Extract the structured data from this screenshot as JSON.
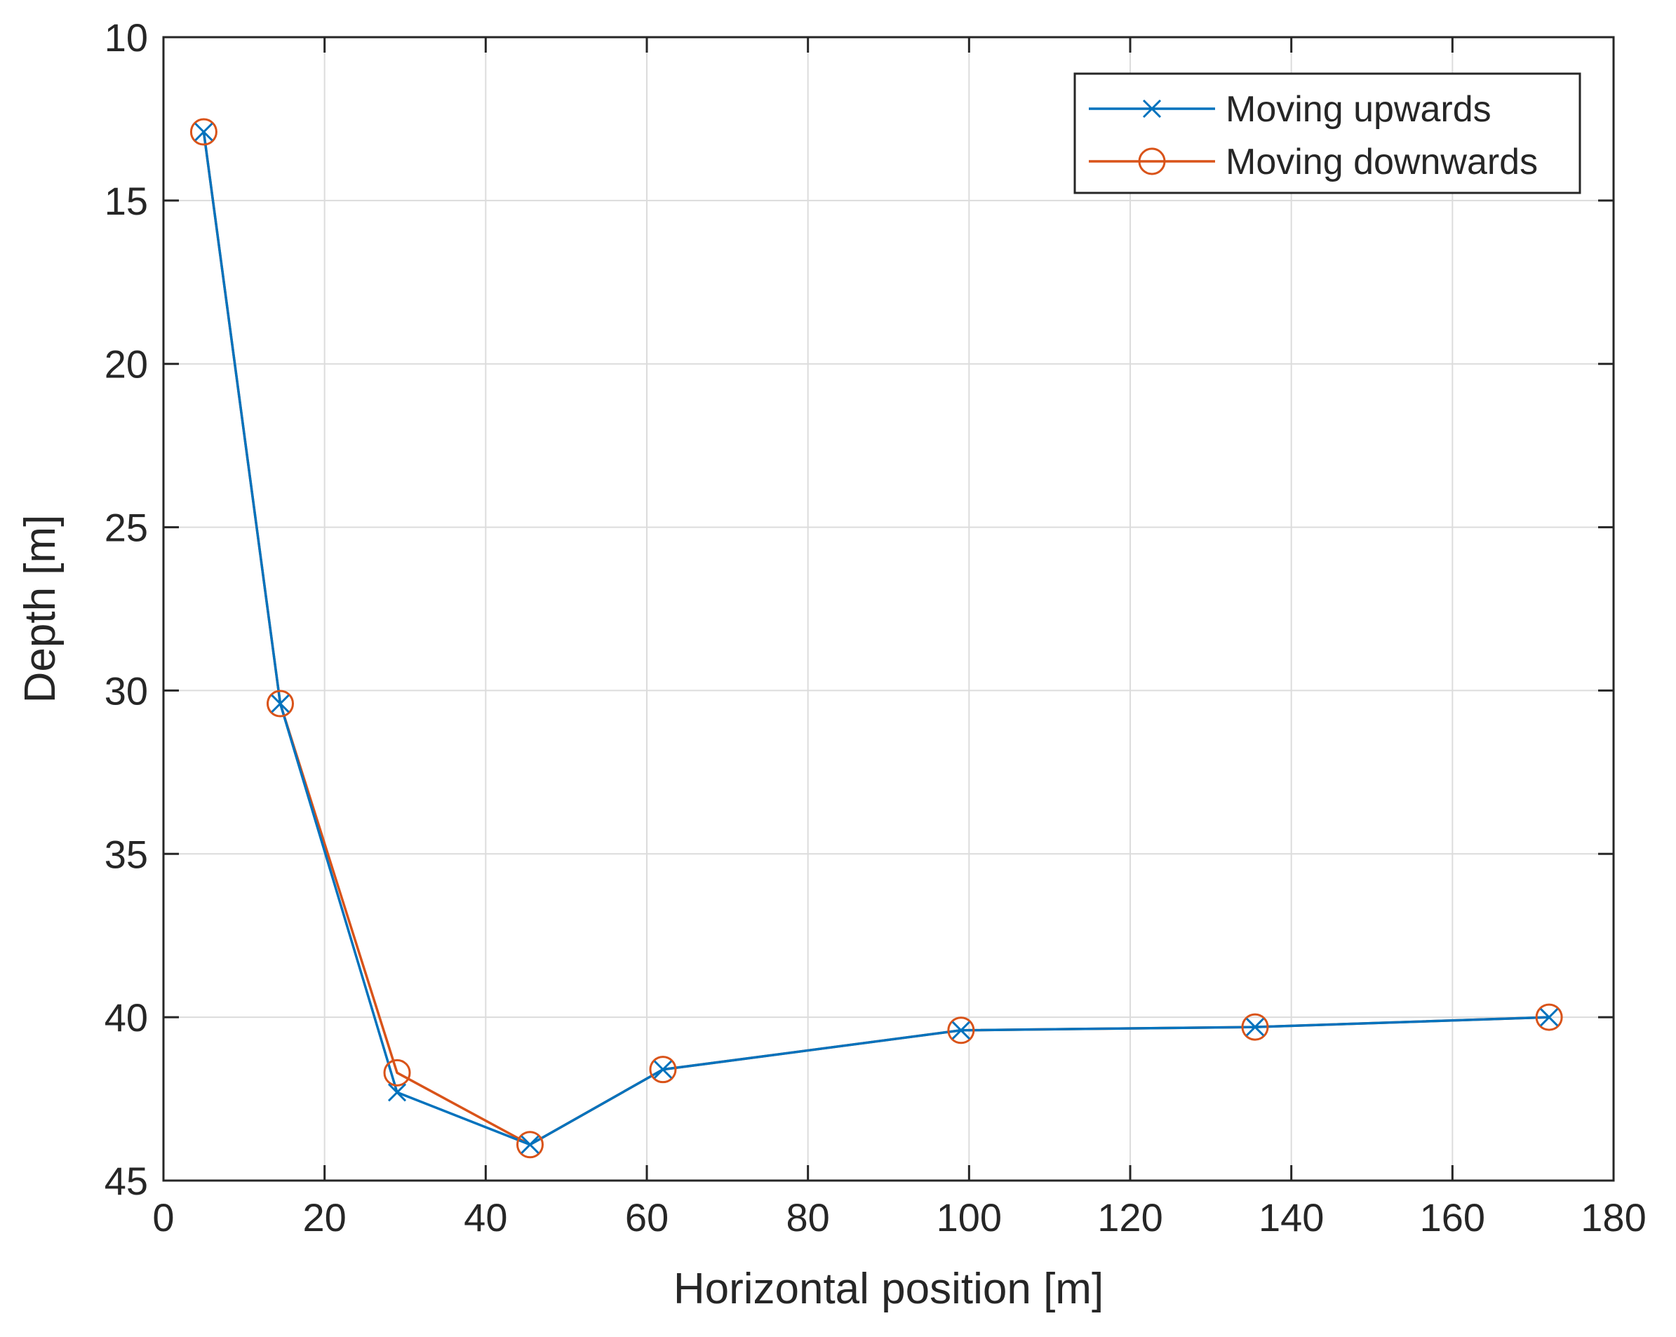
{
  "chart_data": {
    "type": "line",
    "xlabel": "Horizontal position [m]",
    "ylabel": "Depth [m]",
    "xlim": [
      0,
      180
    ],
    "ylim": [
      10,
      45
    ],
    "y_reversed": true,
    "grid": true,
    "x_ticks": [
      "0",
      "20",
      "40",
      "60",
      "80",
      "100",
      "120",
      "140",
      "160",
      "180"
    ],
    "y_ticks": [
      "10",
      "15",
      "20",
      "25",
      "30",
      "35",
      "40",
      "45"
    ],
    "x_tick_values": [
      0,
      20,
      40,
      60,
      80,
      100,
      120,
      140,
      160,
      180
    ],
    "y_tick_values": [
      10,
      15,
      20,
      25,
      30,
      35,
      40,
      45
    ],
    "legend": {
      "placement": "top-right"
    },
    "series": [
      {
        "name": "Moving upwards",
        "marker": "x",
        "color": "#0072BD",
        "x": [
          5,
          14.5,
          29,
          45.5,
          62,
          99,
          135.5,
          172
        ],
        "y": [
          12.9,
          30.4,
          42.3,
          43.9,
          41.6,
          40.4,
          40.3,
          40.0
        ]
      },
      {
        "name": "Moving downwards",
        "marker": "o",
        "color": "#D95319",
        "x": [
          5,
          14.5,
          29,
          45.5,
          62,
          99,
          135.5,
          172
        ],
        "y": [
          12.9,
          30.4,
          41.7,
          43.9,
          41.6,
          40.4,
          40.3,
          40.0
        ]
      }
    ]
  }
}
